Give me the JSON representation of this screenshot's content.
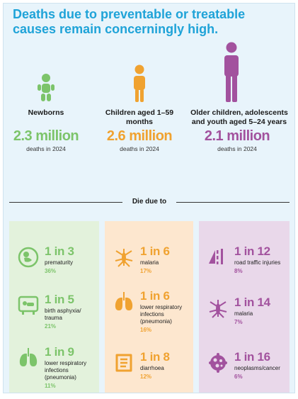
{
  "title": "Deaths due to preventable or treatable causes remain concerningly high.",
  "groups": [
    {
      "title": "Newborns",
      "value": "2.3 million",
      "sub": "deaths in 2024",
      "icon": "baby-icon",
      "color": "#7cc46a"
    },
    {
      "title": "Children aged 1–59 months",
      "value": "2.6 million",
      "sub": "deaths in 2024",
      "icon": "child-icon",
      "color": "#f0a230"
    },
    {
      "title": "Older children, adolescents and youth aged 5–24 years",
      "value": "2.1 million",
      "sub": "deaths in 2024",
      "icon": "youth-icon",
      "color": "#a2529e"
    }
  ],
  "die_due_to": "Die due to",
  "columns": [
    {
      "bg": "#e3f2dc",
      "items": [
        {
          "ratio": "1 in 3",
          "cause": "prematurity",
          "pct": "36%",
          "icon": "premature-baby-icon"
        },
        {
          "ratio": "1 in 5",
          "cause": "birth asphyxia/ trauma",
          "pct": "21%",
          "icon": "incubator-icon"
        },
        {
          "ratio": "1 in 9",
          "cause": "lower respiratory infections (pneumonia)",
          "pct": "11%",
          "icon": "lungs-icon"
        }
      ]
    },
    {
      "bg": "#fde7cf",
      "items": [
        {
          "ratio": "1 in 6",
          "cause": "malaria",
          "pct": "17%",
          "icon": "mosquito-icon"
        },
        {
          "ratio": "1 in 6",
          "cause": "lower respiratory infections (pneumonia)",
          "pct": "16%",
          "icon": "lungs-icon"
        },
        {
          "ratio": "1 in 8",
          "cause": "diarrhoea",
          "pct": "12%",
          "icon": "intestine-icon"
        }
      ]
    },
    {
      "bg": "#e9d8ea",
      "items": [
        {
          "ratio": "1 in 12",
          "cause": "road traffic injuries",
          "pct": "8%",
          "icon": "road-sign-icon"
        },
        {
          "ratio": "1 in 14",
          "cause": "malaria",
          "pct": "7%",
          "icon": "mosquito-icon"
        },
        {
          "ratio": "1 in 16",
          "cause": "neoplasms/cancer",
          "pct": "6%",
          "icon": "cancer-cell-icon"
        }
      ]
    }
  ]
}
